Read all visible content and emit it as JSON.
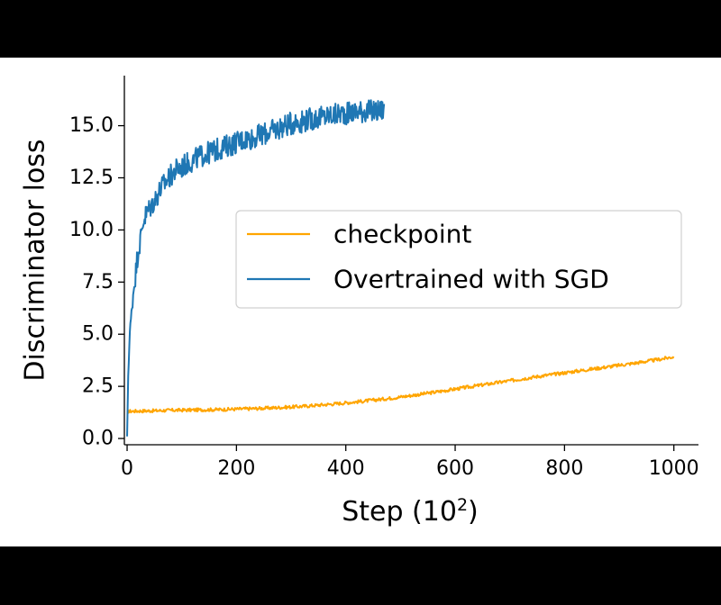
{
  "chart_data": {
    "type": "line",
    "title": "",
    "xlabel": "Step (10",
    "xlabel_superscript": "2",
    "xlabel_close": ")",
    "ylabel": "Discriminator loss",
    "xlim": [
      -5,
      1045
    ],
    "ylim": [
      -0.3,
      17.4
    ],
    "xticks": [
      0,
      200,
      400,
      600,
      800,
      1000
    ],
    "xtick_labels": [
      "0",
      "200",
      "400",
      "600",
      "800",
      "1000"
    ],
    "yticks": [
      0.0,
      2.5,
      5.0,
      7.5,
      10.0,
      12.5,
      15.0
    ],
    "ytick_labels": [
      "0.0",
      "2.5",
      "5.0",
      "7.5",
      "10.0",
      "12.5",
      "15.0"
    ],
    "grid": false,
    "legend_position": "center-right",
    "series": [
      {
        "name": "checkpoint",
        "color": "#FFA500",
        "x": [
          0,
          25,
          50,
          75,
          100,
          125,
          150,
          175,
          200,
          225,
          250,
          275,
          300,
          325,
          350,
          375,
          400,
          425,
          450,
          475,
          500,
          525,
          550,
          575,
          600,
          625,
          650,
          675,
          700,
          725,
          750,
          775,
          800,
          825,
          850,
          875,
          900,
          925,
          950,
          975,
          1000
        ],
        "y": [
          1.3,
          1.32,
          1.33,
          1.35,
          1.36,
          1.37,
          1.38,
          1.39,
          1.41,
          1.43,
          1.45,
          1.48,
          1.51,
          1.55,
          1.6,
          1.65,
          1.71,
          1.77,
          1.84,
          1.91,
          1.99,
          2.08,
          2.17,
          2.27,
          2.37,
          2.47,
          2.57,
          2.67,
          2.77,
          2.87,
          2.97,
          3.06,
          3.15,
          3.24,
          3.33,
          3.42,
          3.51,
          3.6,
          3.7,
          3.8,
          3.92
        ]
      },
      {
        "name": "Overtrained with SGD",
        "color": "#1F77B4",
        "x": [
          0,
          2,
          5,
          8,
          12,
          16,
          20,
          25,
          30,
          40,
          50,
          60,
          70,
          80,
          90,
          100,
          110,
          120,
          130,
          140,
          150,
          160,
          170,
          180,
          190,
          200,
          210,
          220,
          230,
          240,
          250,
          260,
          270,
          280,
          290,
          300,
          310,
          320,
          330,
          340,
          350,
          360,
          370,
          380,
          390,
          400,
          410,
          420,
          430,
          440,
          450,
          460,
          470
        ],
        "y": [
          0.1,
          3.0,
          5.1,
          6.0,
          7.2,
          8.0,
          9.0,
          9.6,
          10.5,
          11.0,
          11.4,
          11.9,
          12.3,
          12.6,
          12.9,
          13.0,
          13.2,
          13.3,
          13.5,
          13.6,
          13.7,
          13.8,
          13.9,
          14.0,
          14.1,
          14.2,
          14.3,
          14.4,
          14.4,
          14.5,
          14.6,
          14.7,
          14.8,
          14.9,
          15.0,
          15.1,
          15.2,
          15.2,
          15.3,
          15.3,
          15.4,
          15.4,
          15.5,
          15.5,
          15.6,
          15.6,
          15.6,
          15.7,
          15.7,
          15.7,
          15.7,
          15.7,
          15.8
        ]
      }
    ]
  }
}
